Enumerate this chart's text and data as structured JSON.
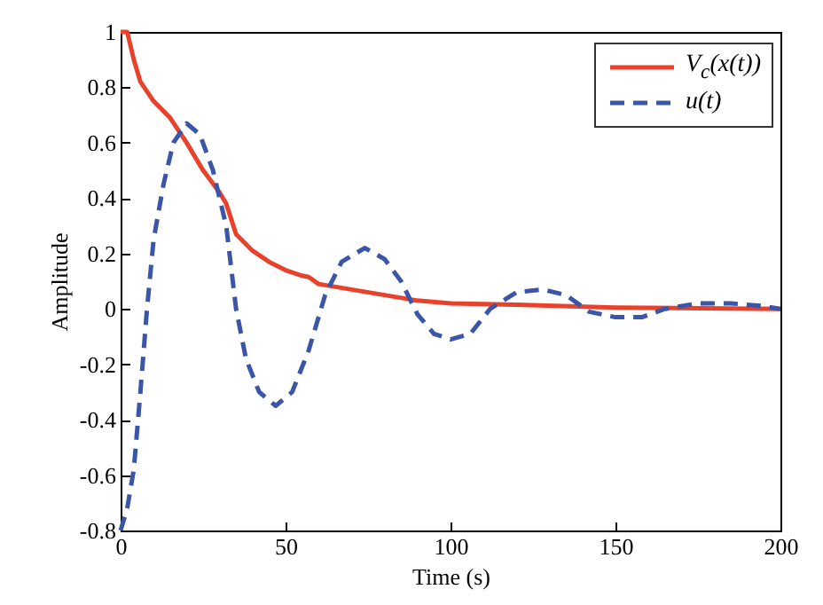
{
  "chart_data": {
    "type": "line",
    "xlabel": "Time (s)",
    "ylabel": "Amplitude",
    "xlim": [
      0,
      200
    ],
    "ylim": [
      -0.8,
      1
    ],
    "xticks": [
      0,
      50,
      100,
      150,
      200
    ],
    "yticks": [
      -0.8,
      -0.6,
      -0.4,
      -0.2,
      0,
      0.2,
      0.4,
      0.6,
      0.8,
      1
    ],
    "grid": false,
    "legend": "top right",
    "marker": "none",
    "series": [
      {
        "name": "V$_{c}$(x(t))",
        "color": "#e8412c",
        "line_style": "solid",
        "x": [
          0,
          2,
          4,
          6,
          10,
          15,
          20,
          25,
          30,
          32,
          35,
          40,
          45,
          50,
          55,
          57,
          60,
          70,
          80,
          90,
          100,
          120,
          150,
          200
        ],
        "values": [
          1,
          1,
          0.9,
          0.82,
          0.75,
          0.69,
          0.6,
          0.5,
          0.42,
          0.38,
          0.27,
          0.21,
          0.17,
          0.14,
          0.12,
          0.115,
          0.09,
          0.07,
          0.05,
          0.03,
          0.02,
          0.015,
          0.005,
          0
        ]
      },
      {
        "name": "u(t)",
        "color": "#3b56a8",
        "line_style": "dashed",
        "x": [
          0,
          2,
          4,
          6,
          8,
          10,
          13,
          16,
          20,
          24,
          28,
          32,
          35,
          38,
          42,
          47,
          52,
          57,
          62,
          67,
          74,
          80,
          85,
          90,
          95,
          100,
          106,
          112,
          120,
          128,
          135,
          142,
          150,
          158,
          165,
          175,
          185,
          195,
          200
        ],
        "values": [
          -0.8,
          -0.72,
          -0.58,
          -0.3,
          0,
          0.25,
          0.45,
          0.6,
          0.67,
          0.63,
          0.5,
          0.3,
          0,
          -0.18,
          -0.3,
          -0.35,
          -0.3,
          -0.15,
          0.05,
          0.17,
          0.22,
          0.18,
          0.1,
          -0.02,
          -0.09,
          -0.11,
          -0.09,
          0,
          0.06,
          0.07,
          0.05,
          -0.01,
          -0.03,
          -0.03,
          0,
          0.02,
          0.02,
          0.01,
          0
        ]
      }
    ]
  }
}
